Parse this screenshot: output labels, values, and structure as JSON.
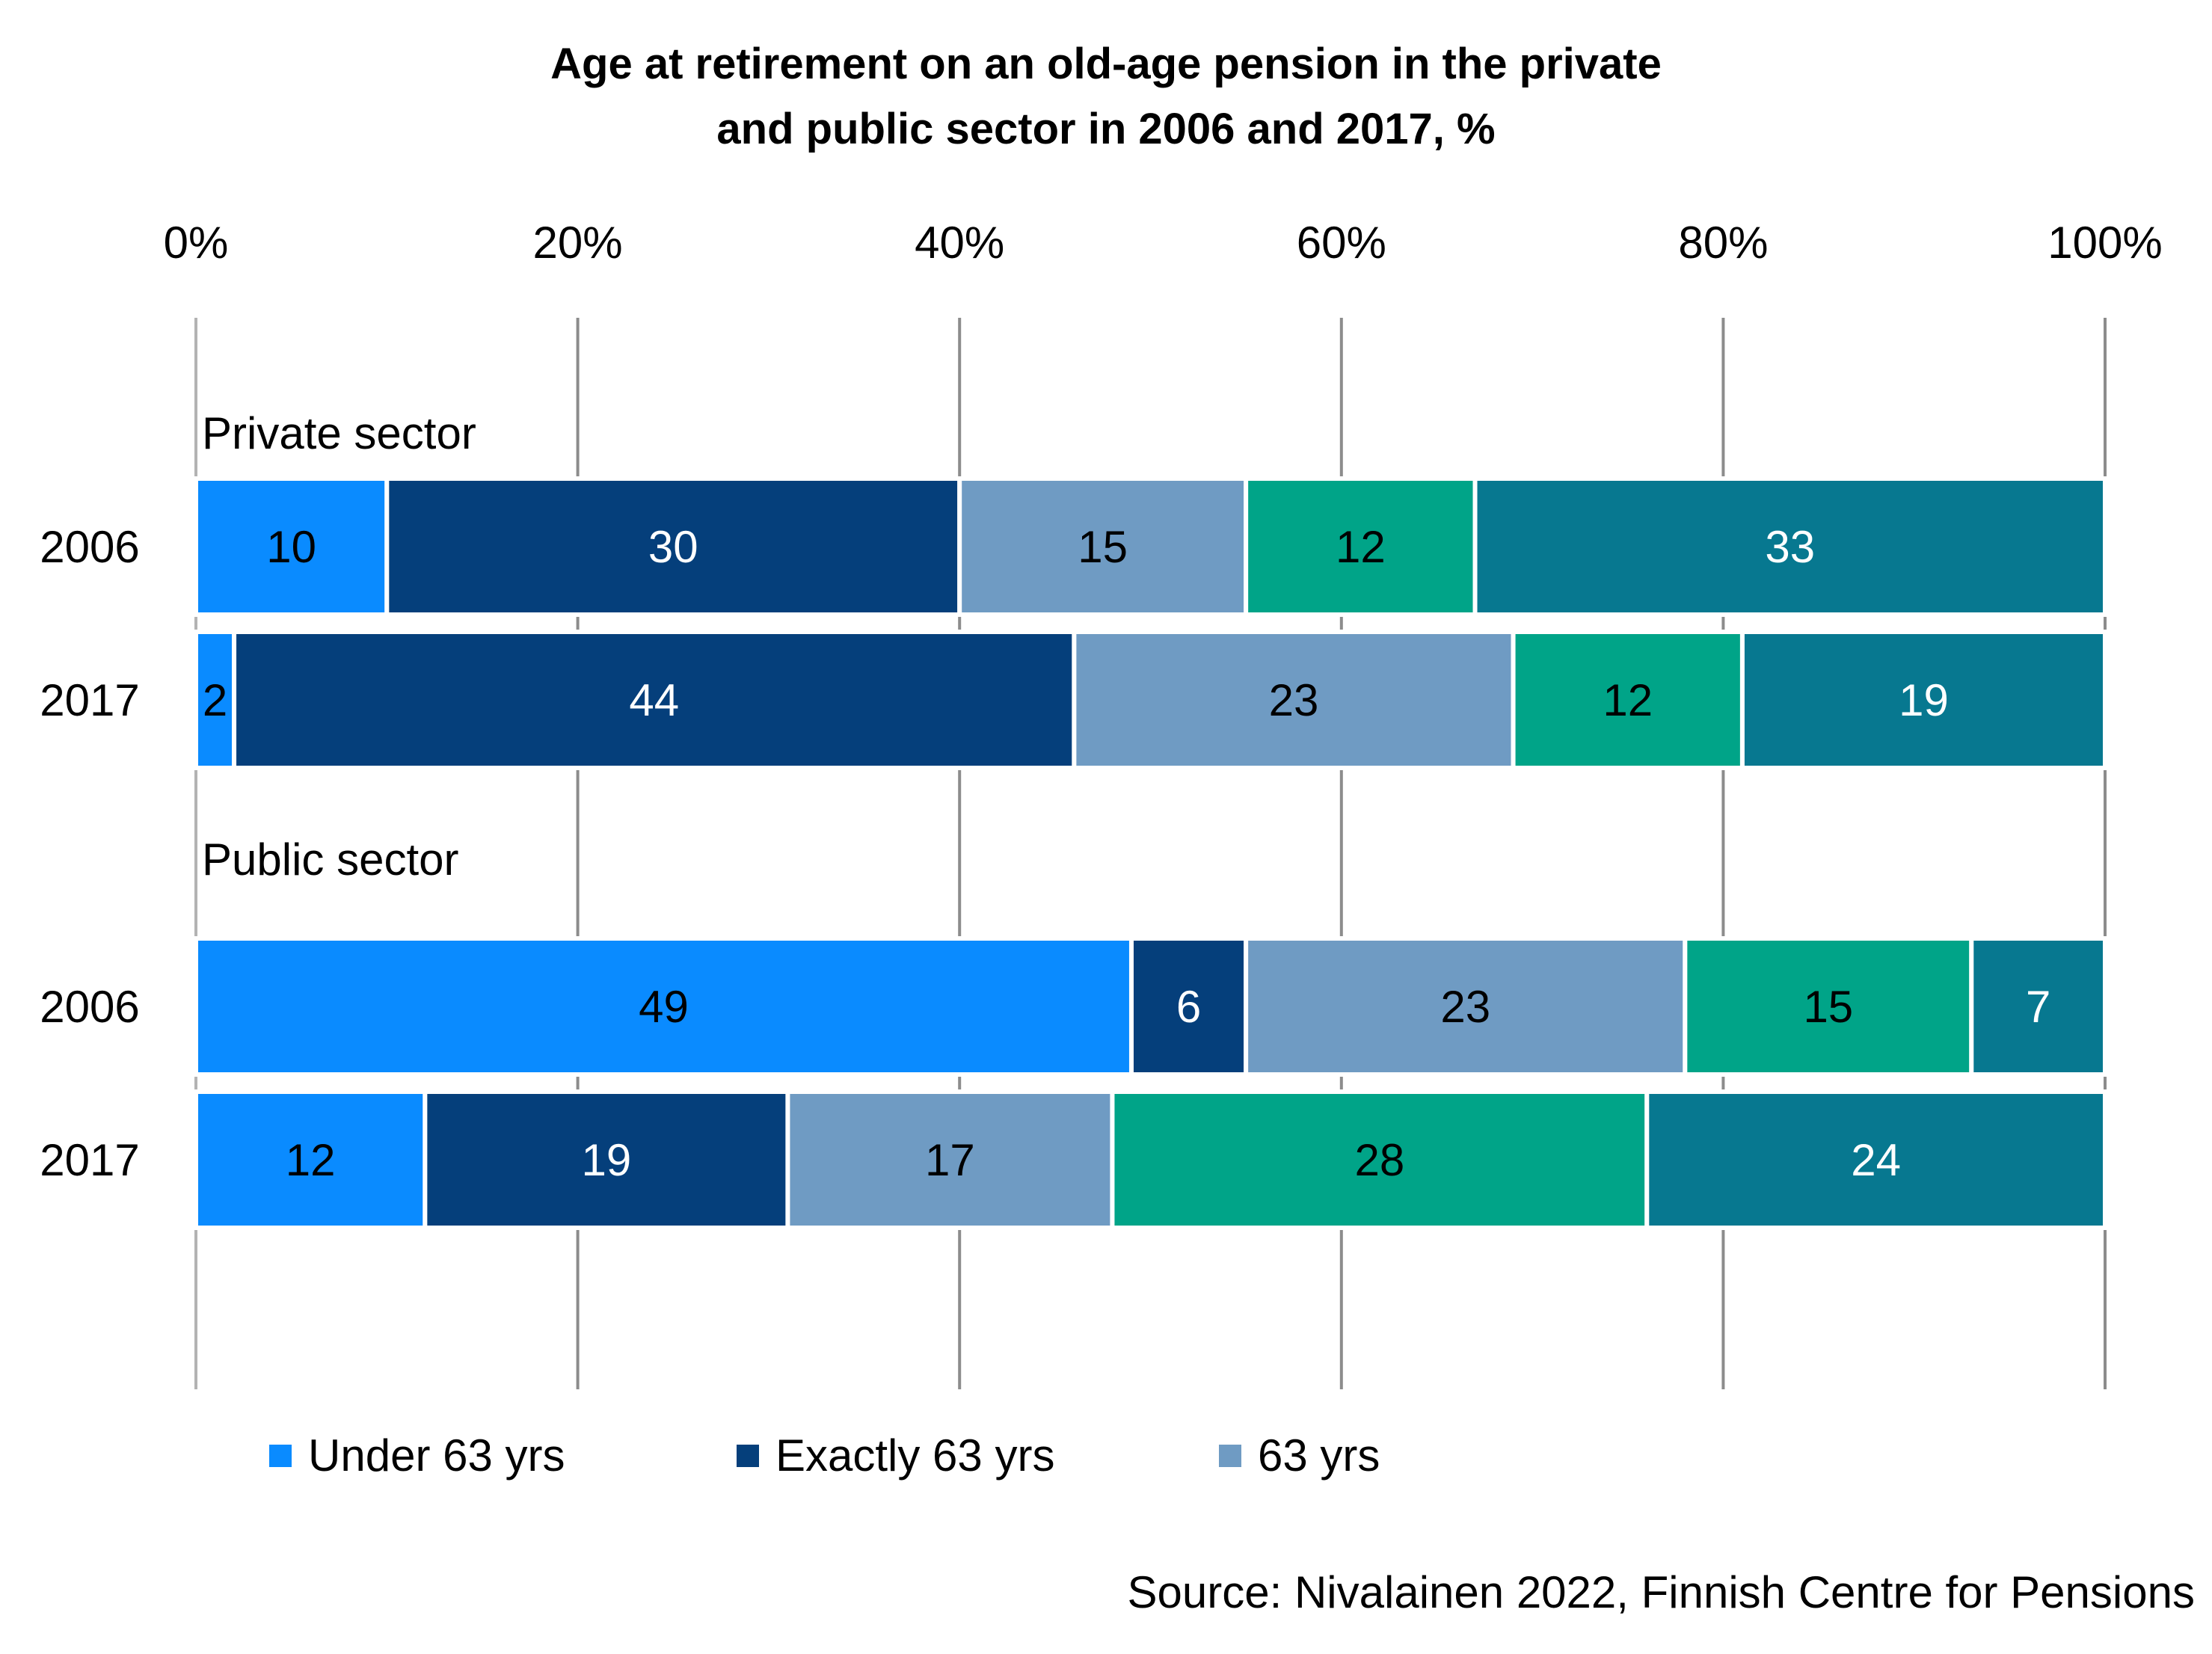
{
  "chart_data": {
    "type": "bar",
    "orientation": "horizontal",
    "stacked": "percent",
    "title_lines": [
      "Age at retirement on an old-age pension in the private",
      "and public sector in 2006 and 2017, %"
    ],
    "x_ticks": [
      "0%",
      "20%",
      "40%",
      "60%",
      "80%",
      "100%"
    ],
    "xlim": [
      0,
      100
    ],
    "grid": true,
    "legend_position": "bottom",
    "groups": [
      {
        "label": "Private sector",
        "rows": [
          {
            "category": "2006",
            "values": [
              10,
              30,
              15,
              12,
              33
            ]
          },
          {
            "category": "2017",
            "values": [
              2,
              44,
              23,
              12,
              19
            ]
          }
        ]
      },
      {
        "label": "Public sector",
        "rows": [
          {
            "category": "2006",
            "values": [
              49,
              6,
              23,
              15,
              7
            ]
          },
          {
            "category": "2017",
            "values": [
              12,
              19,
              17,
              28,
              24
            ]
          }
        ]
      }
    ],
    "series": [
      {
        "name": "Under 63 yrs",
        "color": "#0a8bff",
        "label_color": "#000000"
      },
      {
        "name": "Exactly 63 yrs",
        "color": "#053f7b",
        "label_color": "#ffffff"
      },
      {
        "name": "63 yrs",
        "color": "#6f9bc3",
        "label_color": "#000000"
      },
      {
        "color": "#00a488",
        "label_color": "#000000"
      },
      {
        "color": "#077890",
        "label_color": "#ffffff"
      }
    ],
    "legend_entries": [
      "Under 63 yrs",
      "Exactly 63 yrs",
      "63 yrs"
    ],
    "source": "Source: Nivalainen 2022, Finnish Centre for Pensions"
  }
}
